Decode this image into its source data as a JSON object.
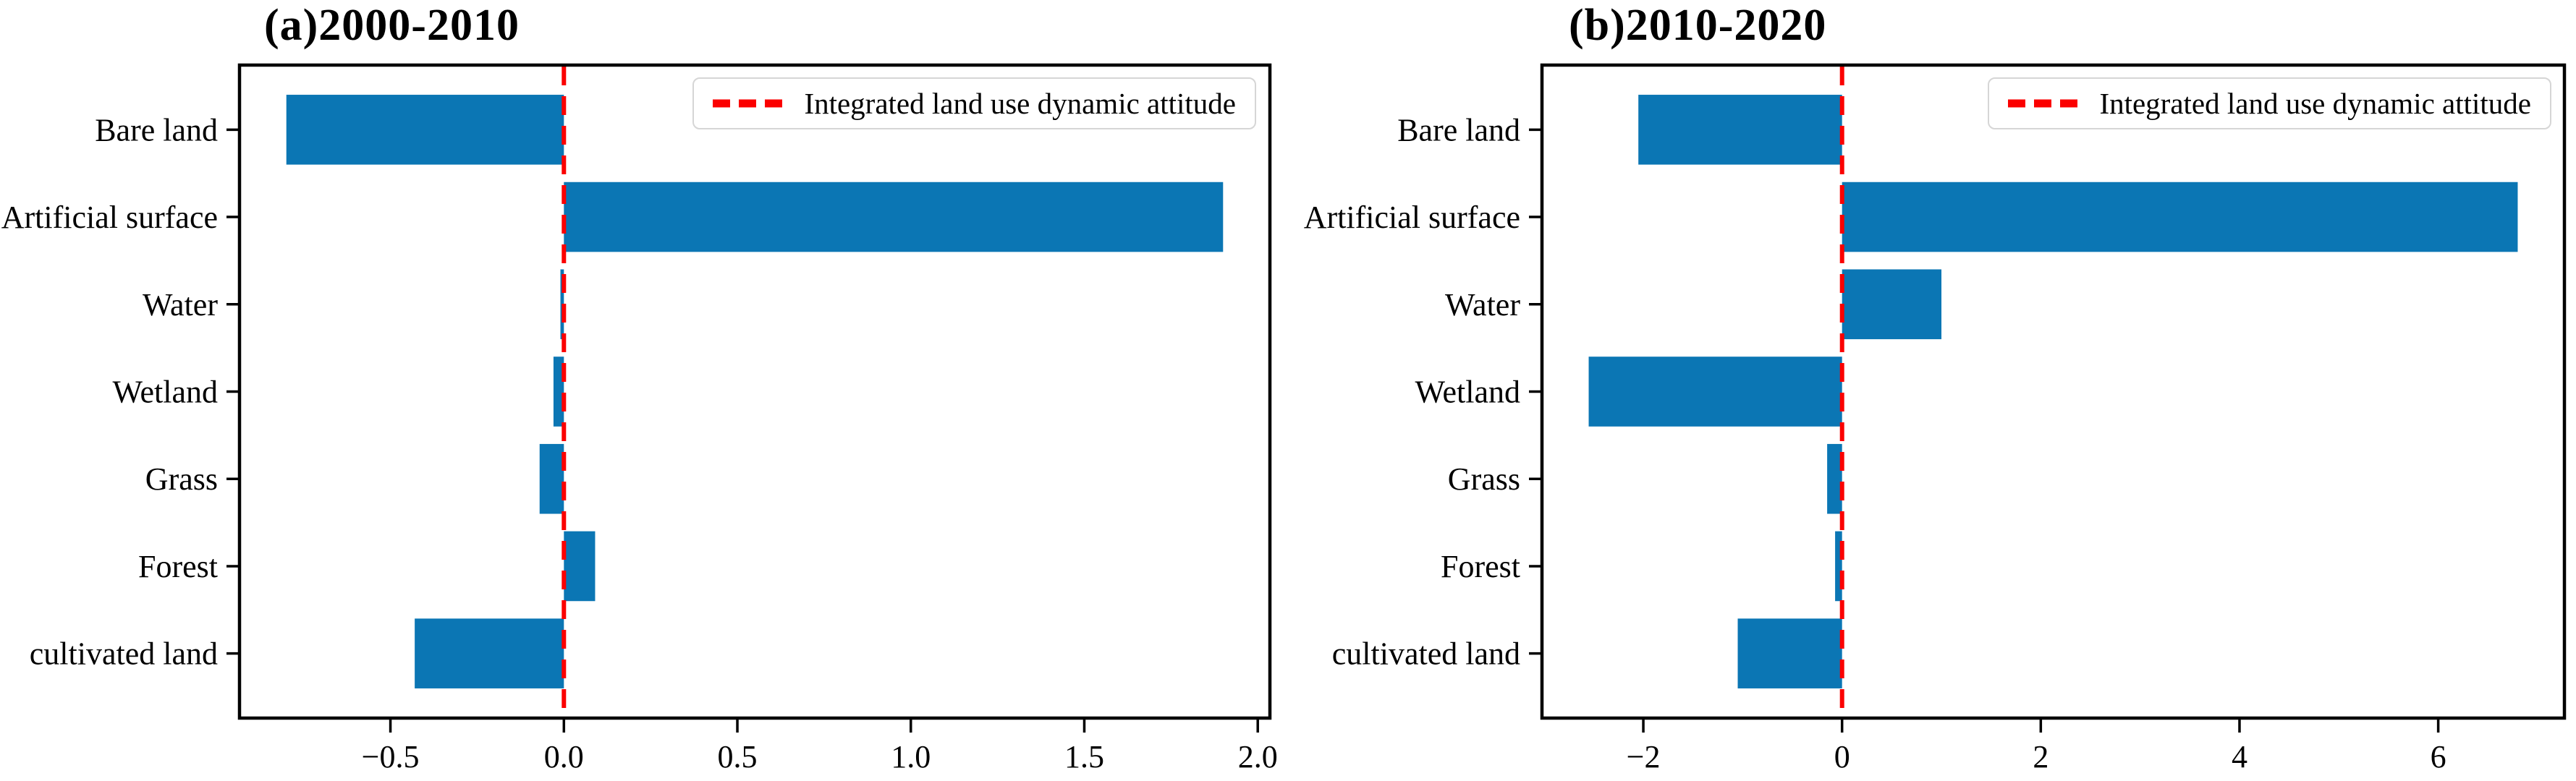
{
  "figure": {
    "background": "#ffffff",
    "bar_color": "#0b76b4",
    "zero_line_color": "#fb0000",
    "spine_color": "#000000"
  },
  "chart_data": [
    {
      "type": "bar",
      "orientation": "horizontal",
      "title": "(a)2000-2010",
      "categories_top_to_bottom": [
        "Bare land",
        "Artificial surface",
        "Water",
        "Wetland",
        "Grass",
        "Forest",
        "cultivated land"
      ],
      "values": [
        -0.8,
        1.9,
        -0.01,
        -0.03,
        -0.07,
        0.09,
        -0.43
      ],
      "xlim": [
        -0.935,
        2.035
      ],
      "xticks": [
        -0.5,
        0.0,
        0.5,
        1.0,
        1.5,
        2.0
      ],
      "xtick_labels": [
        "−0.5",
        "0.0",
        "0.5",
        "1.0",
        "1.5",
        "2.0"
      ],
      "grid": false,
      "legend": {
        "label": "Integrated land use dynamic attitude",
        "position": "upper right",
        "line_style": "dashed",
        "line_color": "#fb0000"
      },
      "zero_line": {
        "x": 0,
        "style": "dashed",
        "color": "#fb0000"
      }
    },
    {
      "type": "bar",
      "orientation": "horizontal",
      "title": "(b)2010-2020",
      "categories_top_to_bottom": [
        "Bare land",
        "Artificial surface",
        "Water",
        "Wetland",
        "Grass",
        "Forest",
        "cultivated land"
      ],
      "values": [
        -2.05,
        6.8,
        1.0,
        -2.55,
        -0.15,
        -0.07,
        -1.05
      ],
      "xlim": [
        -3.02,
        7.27
      ],
      "xticks": [
        -2,
        0,
        2,
        4,
        6
      ],
      "xtick_labels": [
        "−2",
        "0",
        "2",
        "4",
        "6"
      ],
      "grid": false,
      "legend": {
        "label": "Integrated land use dynamic attitude",
        "position": "upper right",
        "line_style": "dashed",
        "line_color": "#fb0000"
      },
      "zero_line": {
        "x": 0,
        "style": "dashed",
        "color": "#fb0000"
      }
    }
  ]
}
